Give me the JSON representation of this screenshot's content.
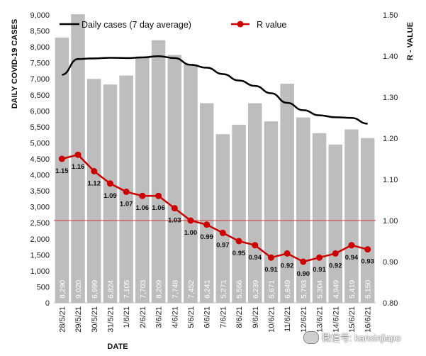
{
  "chart_data": {
    "type": "bar+line",
    "categories": [
      "28/5/21",
      "29/5/21",
      "30/5/21",
      "31/5/21",
      "1/6/21",
      "2/6/21",
      "3/6/21",
      "4/6/21",
      "5/6/21",
      "6/6/21",
      "7/6/21",
      "8/6/21",
      "9/6/21",
      "10/6/21",
      "11/6/21",
      "12/6/21",
      "13/6/21",
      "14/6/21",
      "15/6/21",
      "16/6/21"
    ],
    "bars": {
      "values": [
        8290,
        9020,
        6999,
        6824,
        7105,
        7703,
        8209,
        7748,
        7452,
        6241,
        5271,
        5566,
        6239,
        5671,
        6849,
        5793,
        5304,
        4949,
        5419,
        5150
      ],
      "labels": [
        "8,290",
        "9,020",
        "6,999",
        "6,824",
        "7,105",
        "7,703",
        "8,209",
        "7,748",
        "7,452",
        "6,241",
        "5,271",
        "5,566",
        "6,239",
        "5,671",
        "6,849",
        "5,793",
        "5,304",
        "4,949",
        "5,419",
        "5,150"
      ],
      "color": "#bdbdbd"
    },
    "avg_line": {
      "name": "Daily cases (7 day average)",
      "values": [
        7130,
        7620,
        7640,
        7660,
        7650,
        7670,
        7710,
        7650,
        7440,
        7350,
        7150,
        6950,
        6780,
        6550,
        6250,
        6020,
        5860,
        5800,
        5780,
        5600
      ],
      "color": "#000000"
    },
    "r_series": {
      "name": "R value",
      "values": [
        1.15,
        1.16,
        1.12,
        1.09,
        1.07,
        1.06,
        1.06,
        1.03,
        1.0,
        0.99,
        0.97,
        0.95,
        0.94,
        0.91,
        0.92,
        0.9,
        0.91,
        0.92,
        0.94,
        0.93
      ],
      "labels": [
        "1.15",
        "1.16",
        "1.12",
        "1.09",
        "1.07",
        "1.06",
        "1.06",
        "1.03",
        "1.00",
        "0.99",
        "0.97",
        "0.95",
        "0.94",
        "0.91",
        "0.92",
        "0.90",
        "0.91",
        "0.92",
        "0.94",
        "0.93"
      ],
      "color": "#cc0000"
    },
    "reference_line": {
      "value": 1.0,
      "axis": "right",
      "color": "#cc3333"
    },
    "left_axis": {
      "title": "DAILY COVID-19 CASES",
      "min": 0,
      "max": 9000,
      "step": 500,
      "ticks": [
        "0",
        "500",
        "1,000",
        "1,500",
        "2,000",
        "2,500",
        "3,000",
        "3,500",
        "4,000",
        "4,500",
        "5,000",
        "5,500",
        "6,000",
        "6,500",
        "7,000",
        "7,500",
        "8,000",
        "8,500",
        "9,000"
      ]
    },
    "right_axis": {
      "title": "R - VALUE",
      "min": 0.8,
      "max": 1.5,
      "step": 0.1,
      "ticks": [
        "0.80",
        "0.90",
        "1.00",
        "1.10",
        "1.20",
        "1.30",
        "1.40",
        "1.50"
      ]
    },
    "xlabel": "DATE",
    "legend_placement": "top"
  },
  "watermark": {
    "text": "微信号: kanxinjiapo",
    "icon": "wechat-icon"
  }
}
